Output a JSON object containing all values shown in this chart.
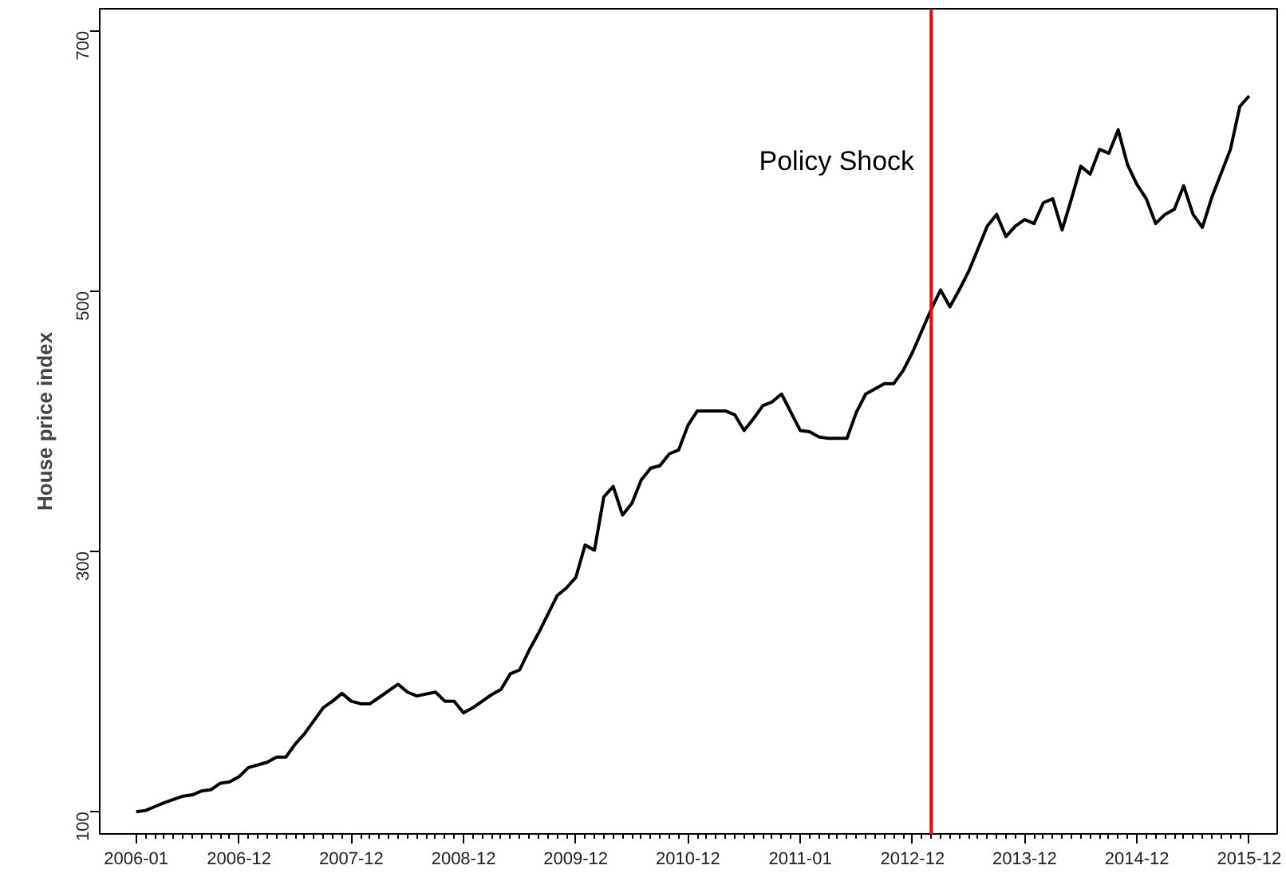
{
  "chart_data": {
    "type": "line",
    "ylabel": "House price index",
    "x": [
      "2006-01",
      "2006-02",
      "2006-03",
      "2006-04",
      "2006-06",
      "2006-07",
      "2006-08",
      "2006-09",
      "2006-10",
      "2006-11",
      "2006-12",
      "2007-01",
      "2007-03",
      "2007-04",
      "2007-05",
      "2007-06",
      "2007-07",
      "2007-09",
      "2007-10",
      "2007-11",
      "2007-12",
      "2008-01",
      "2008-02",
      "2008-03",
      "2008-05",
      "2008-06",
      "2008-07",
      "2008-09",
      "2008-10",
      "2008-11",
      "2008-12",
      "2009-01",
      "2009-03",
      "2009-04",
      "2009-05",
      "2009-06",
      "2009-07",
      "2009-08",
      "2009-10",
      "2009-11",
      "2009-12",
      "2010-01",
      "2010-02",
      "2010-03",
      "2010-04",
      "2010-05",
      "2010-06",
      "2010-07",
      "2010-08",
      "2010-09",
      "2010-10",
      "2010-11",
      "2010-12",
      "2011-01",
      "2011-04",
      "2011-05",
      "2011-06",
      "2011-07",
      "2011-08",
      "2011-09",
      "2011-10",
      "2011-11",
      "2011-12",
      "2012-01",
      "2012-02",
      "2012-03",
      "2012-05",
      "2012-06",
      "2012-07",
      "2012-08",
      "2012-09",
      "2012-10",
      "2012-11",
      "2012-12",
      "2013-02",
      "2013-03",
      "2013-04",
      "2013-05",
      "2013-06",
      "2013-08",
      "2013-09",
      "2013-10",
      "2013-11",
      "2013-12",
      "2014-01",
      "2014-02",
      "2014-03",
      "2014-04",
      "2014-05",
      "2014-06",
      "2014-07",
      "2014-08",
      "2014-09",
      "2014-10",
      "2014-11",
      "2014-12",
      "2015-01",
      "2015-02",
      "2015-03",
      "2015-04",
      "2015-05",
      "2015-06",
      "2015-07",
      "2015-08",
      "2015-10",
      "2015-11",
      "2015-12"
    ],
    "series": [
      {
        "color": "#000000",
        "values": [
          100,
          101,
          104,
          107,
          112,
          113,
          116,
          117,
          122,
          123,
          127,
          134,
          138,
          142,
          142,
          152,
          160,
          180,
          185,
          191,
          185,
          183,
          183,
          188,
          198,
          192,
          189,
          192,
          185,
          185,
          176,
          180,
          190,
          194,
          206,
          209,
          224,
          237,
          266,
          272,
          280,
          305,
          301,
          342,
          350,
          328,
          337,
          355,
          364,
          366,
          375,
          378,
          397,
          408,
          408,
          405,
          393,
          402,
          412,
          415,
          421,
          407,
          393,
          392,
          388,
          387,
          387,
          407,
          421,
          425,
          429,
          429,
          439,
          453,
          486,
          501,
          488,
          501,
          515,
          550,
          559,
          542,
          550,
          555,
          552,
          568,
          571,
          547,
          571,
          596,
          590,
          609,
          606,
          624,
          597,
          582,
          571,
          552,
          559,
          563,
          581,
          559,
          549,
          572,
          609,
          642,
          650
        ]
      }
    ],
    "xlim": [
      "2005-09-04",
      "2016-03-01"
    ],
    "xticks": [
      {
        "value": "2006-01",
        "label": "2006-01"
      },
      {
        "value": "2006-12",
        "label": "2006-12"
      },
      {
        "value": "2007-12",
        "label": "2007-12"
      },
      {
        "value": "2008-12",
        "label": "2008-12"
      },
      {
        "value": "2009-12",
        "label": "2009-12"
      },
      {
        "value": "2010-12",
        "label": "2010-12"
      },
      {
        "value": "2011-12",
        "label": "2011-01"
      },
      {
        "value": "2012-12",
        "label": "2012-12"
      },
      {
        "value": "2013-12",
        "label": "2013-12"
      },
      {
        "value": "2014-12",
        "label": "2014-12"
      },
      {
        "value": "2015-12",
        "label": "2015-12"
      }
    ],
    "ylim": [
      83,
      717
    ],
    "yticks": [
      100,
      300,
      500,
      700
    ],
    "ref_lines": [
      {
        "axis": "x",
        "value": "2013-02",
        "label": "Policy Shock",
        "color": "#ff0000",
        "line_style": "solid"
      }
    ],
    "grid": false,
    "marker": "none",
    "line_style": "solid"
  }
}
